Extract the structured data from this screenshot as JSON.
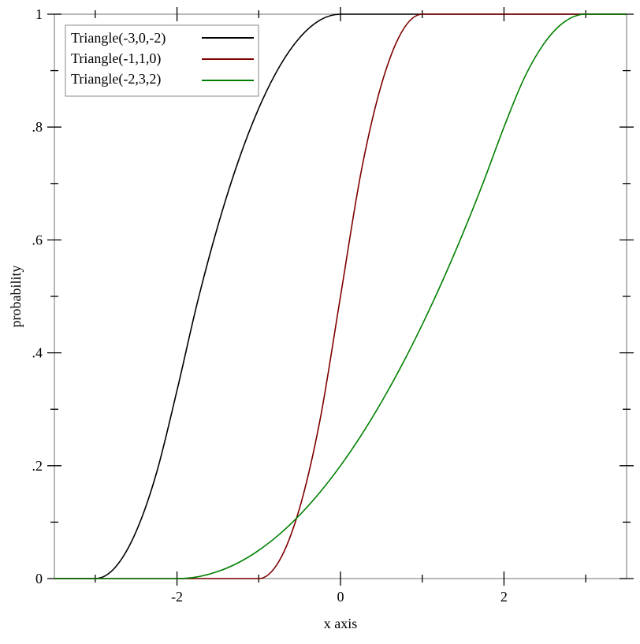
{
  "chart_data": {
    "type": "line",
    "title": "",
    "xlabel": "x axis",
    "ylabel": "probability",
    "xlim": [
      -3.5,
      3.5
    ],
    "ylim": [
      0,
      1
    ],
    "grid": false,
    "legend_position": "top-left",
    "x_ticks": [
      {
        "v": -2,
        "label": "-2"
      },
      {
        "v": 0,
        "label": "0"
      },
      {
        "v": 2,
        "label": "2"
      }
    ],
    "x_minor_ticks": [
      -3,
      -1,
      1,
      3
    ],
    "y_ticks": [
      {
        "v": 0,
        "label": "0"
      },
      {
        "v": 0.2,
        "label": ".2"
      },
      {
        "v": 0.4,
        "label": ".4"
      },
      {
        "v": 0.6,
        "label": ".6"
      },
      {
        "v": 0.8,
        "label": ".8"
      },
      {
        "v": 1,
        "label": "1"
      }
    ],
    "y_minor_ticks": [
      0.1,
      0.3,
      0.5,
      0.7,
      0.9
    ],
    "x": [
      -3.5,
      -3.25,
      -3,
      -2.75,
      -2.5,
      -2.25,
      -2,
      -1.75,
      -1.5,
      -1.25,
      -1,
      -0.75,
      -0.5,
      -0.25,
      0,
      0.25,
      0.5,
      0.75,
      1,
      1.25,
      1.5,
      1.75,
      2,
      2.25,
      2.5,
      2.75,
      3,
      3.25,
      3.5
    ],
    "series": [
      {
        "name": "Triangle(-3,0,-2)",
        "color": "#000000",
        "values": [
          0,
          0,
          0,
          0.0208,
          0.0833,
          0.1875,
          0.3333,
          0.4896,
          0.625,
          0.7396,
          0.8333,
          0.9063,
          0.9583,
          0.9896,
          1,
          1,
          1,
          1,
          1,
          1,
          1,
          1,
          1,
          1,
          1,
          1,
          1,
          1,
          1
        ]
      },
      {
        "name": "Triangle(-1,1,0)",
        "color": "#7f0000",
        "values": [
          0,
          0,
          0,
          0,
          0,
          0,
          0,
          0,
          0,
          0,
          0,
          0.0313,
          0.125,
          0.2813,
          0.5,
          0.7188,
          0.875,
          0.9688,
          1,
          1,
          1,
          1,
          1,
          1,
          1,
          1,
          1,
          1,
          1
        ]
      },
      {
        "name": "Triangle(-2,3,2)",
        "color": "#008000",
        "values": [
          0,
          0,
          0,
          0,
          0,
          0,
          0,
          0.0031,
          0.0125,
          0.0281,
          0.05,
          0.0781,
          0.1125,
          0.1531,
          0.2,
          0.2531,
          0.3125,
          0.3781,
          0.45,
          0.5281,
          0.6125,
          0.7031,
          0.8,
          0.8875,
          0.95,
          0.9875,
          1,
          1,
          1
        ]
      }
    ]
  }
}
